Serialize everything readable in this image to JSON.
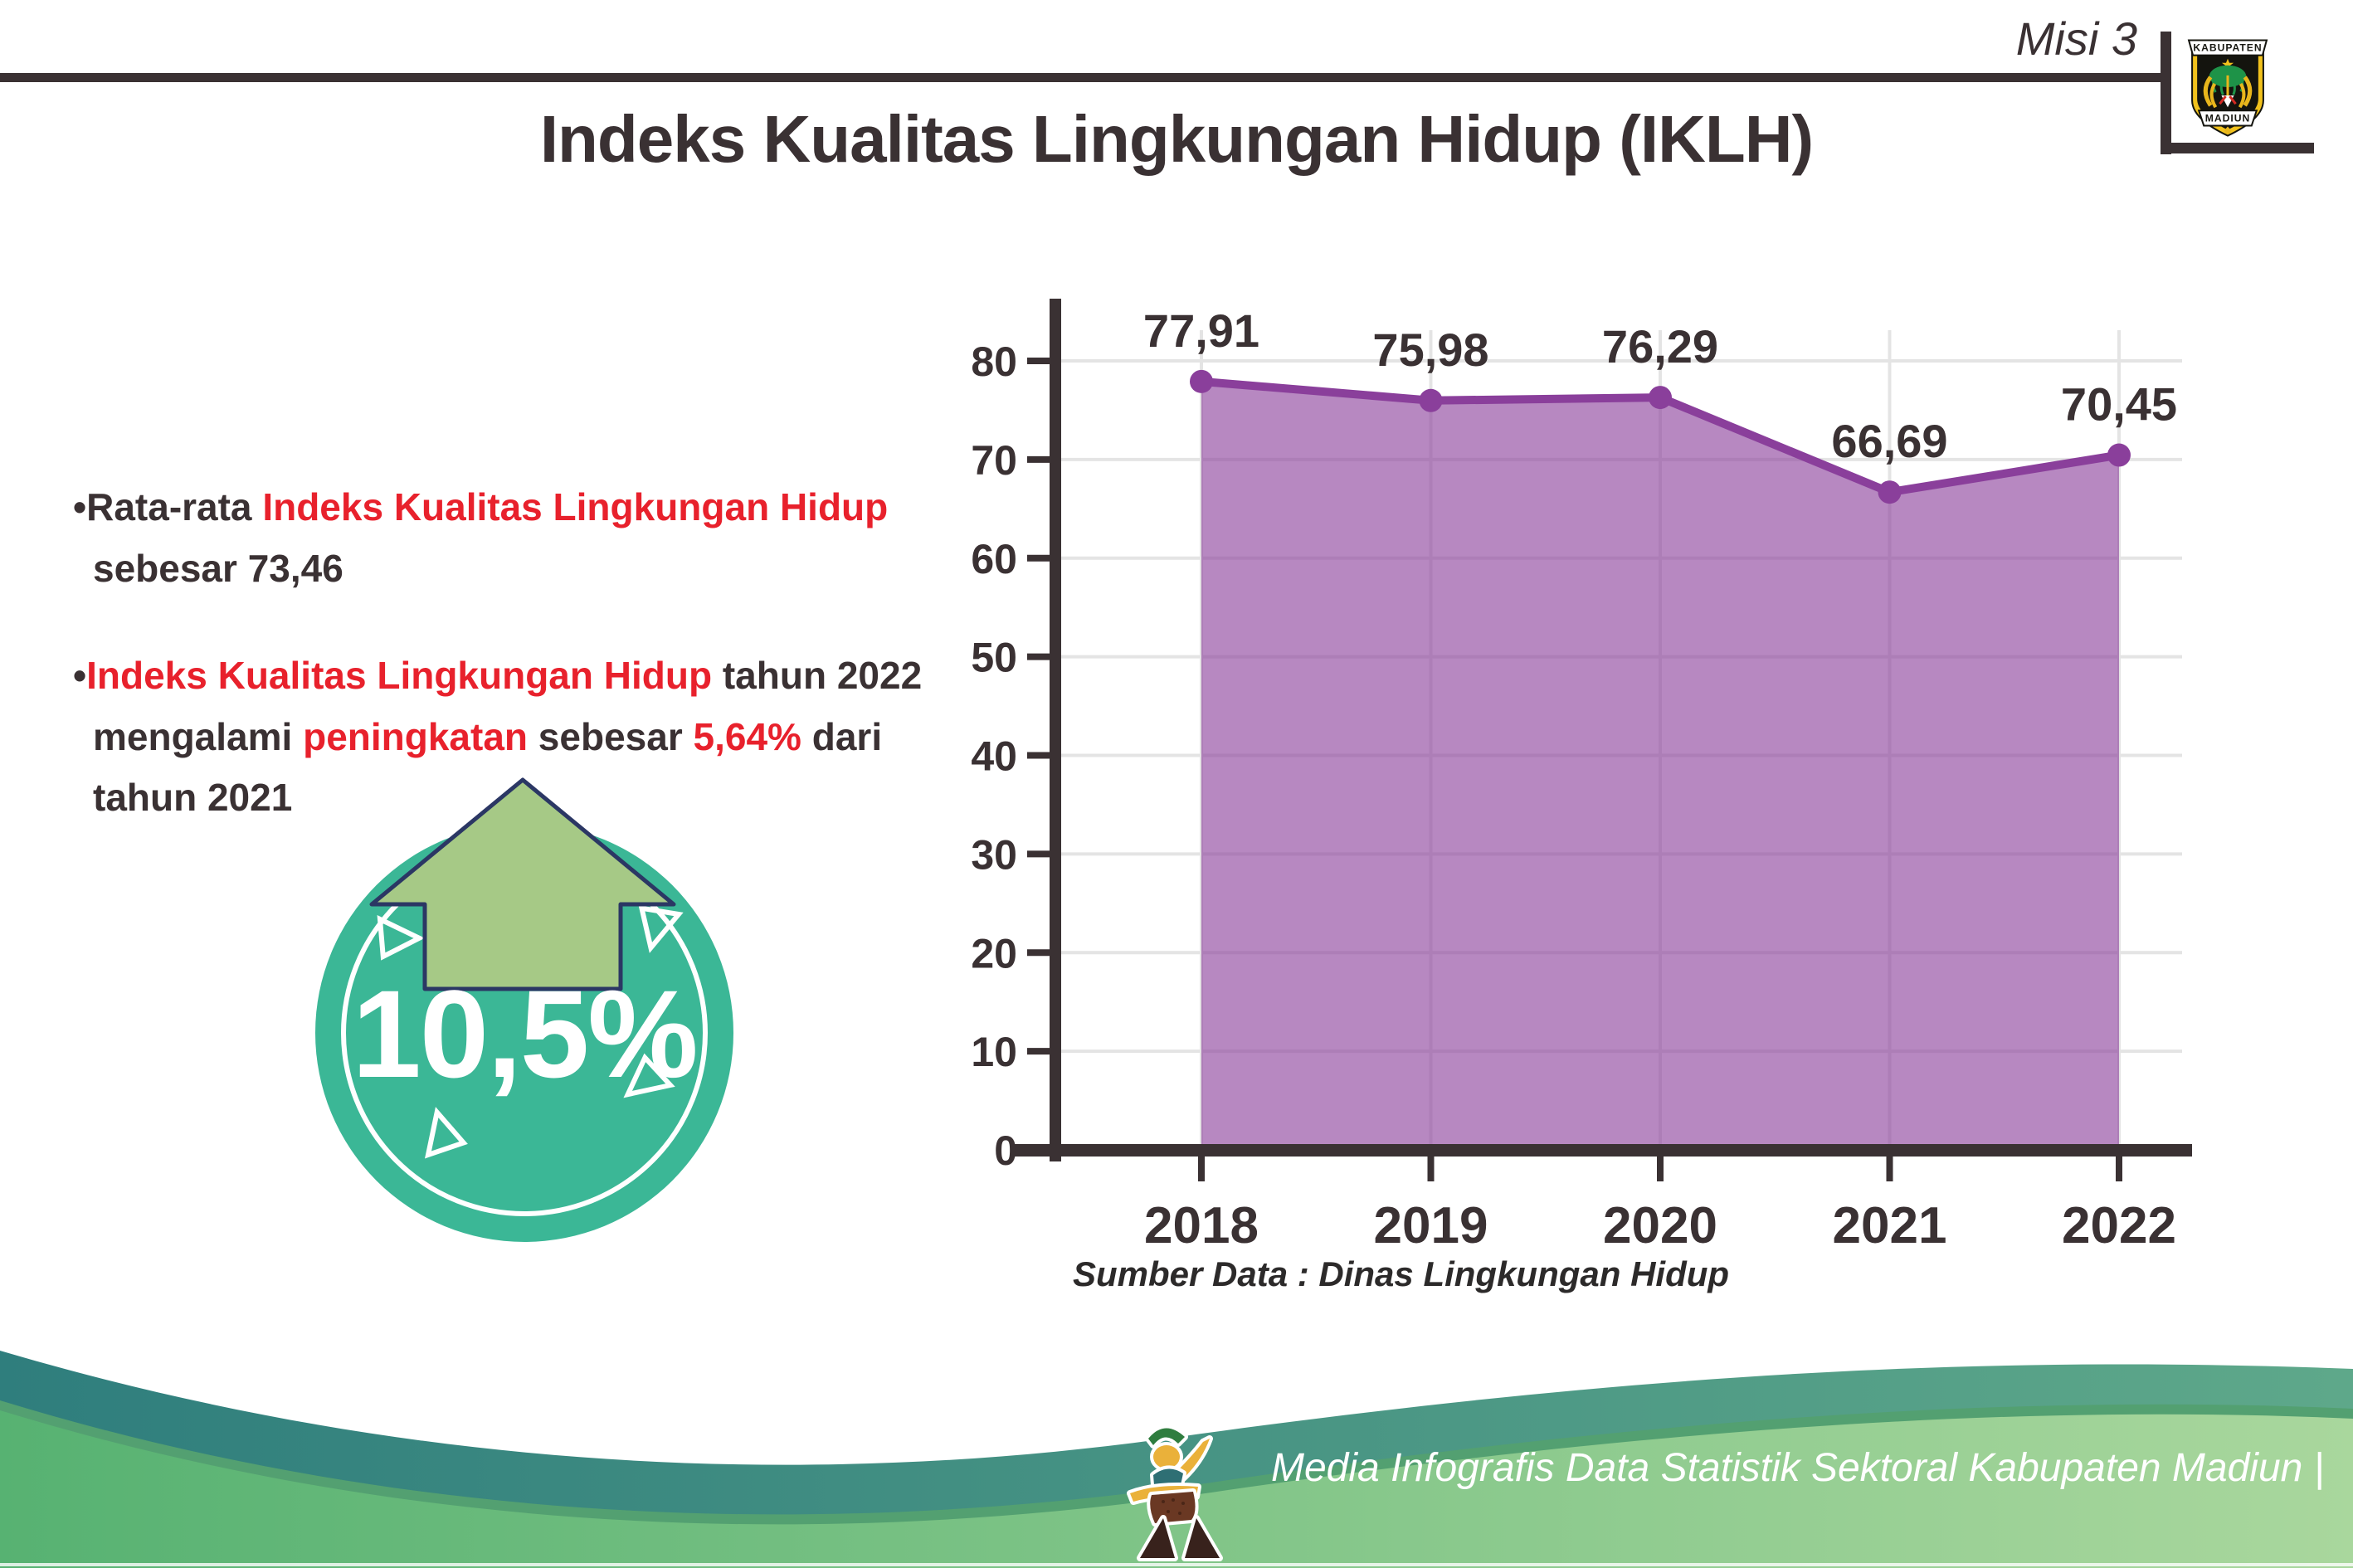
{
  "header": {
    "misi_label": "Misi 3",
    "logo_top": "KABUPATEN",
    "logo_bottom": "MADIUN"
  },
  "title": "Indeks Kualitas Lingkungan Hidup (IKLH)",
  "bullet_char": "•",
  "bullet1": {
    "dark1": "Rata-rata ",
    "red1": "Indeks Kualitas Lingkungan Hidup",
    "line2": "sebesar 73,46"
  },
  "bullet2": {
    "red1": "Indeks Kualitas Lingkungan Hidup",
    "dark1": " tahun 2022",
    "dark2": "mengalami ",
    "red2": "peningkatan",
    "dark3": " sebesar ",
    "red3": "5,64%",
    "dark4": " dari",
    "line3": "tahun 2021"
  },
  "badge": {
    "value": "10,5%"
  },
  "chart_data": {
    "type": "area",
    "categories": [
      "2018",
      "2019",
      "2020",
      "2021",
      "2022"
    ],
    "values": [
      77.91,
      75.98,
      76.29,
      66.69,
      70.45
    ],
    "value_labels": [
      "77,91",
      "75,98",
      "76,29",
      "66,69",
      "70,45"
    ],
    "title": "",
    "xlabel": "",
    "ylabel": "",
    "ylim": [
      0,
      80
    ],
    "ytick_step": 10,
    "grid": true,
    "legend": false,
    "line_color": "#8a3f9b",
    "fill_color": "rgba(138,63,155,0.62)",
    "source_note": "Sumber Data : Dinas Lingkungan Hidup"
  },
  "footer": {
    "caption": "Media Infografis Data Statistik Sektoral Kabupaten Madiun |"
  },
  "colors": {
    "dark_text": "#3a3133",
    "accent_red": "#e8212c",
    "badge_teal": "#3bb796",
    "arrow_green": "#a6c986",
    "arrow_outline": "#2b3764",
    "chart_line": "#8a3f9b",
    "chart_fill": "#b688c1",
    "footer_teal": "#2f7e7d",
    "footer_green": "#57b272"
  }
}
